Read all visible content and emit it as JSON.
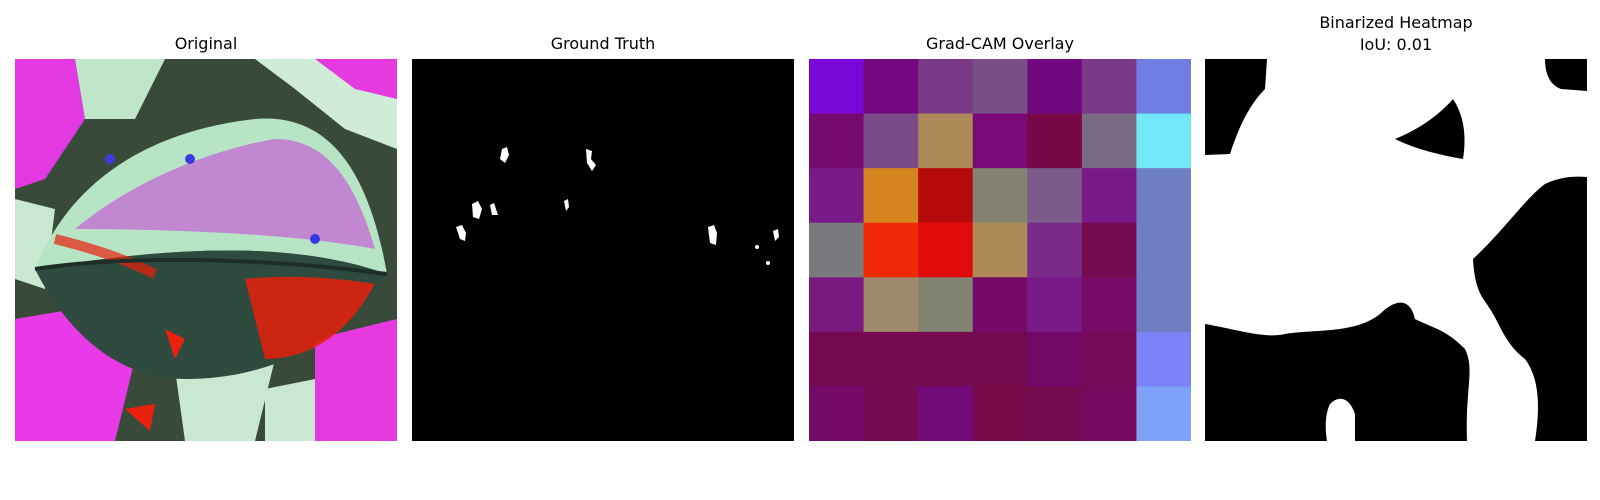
{
  "panels": [
    {
      "title": "Original"
    },
    {
      "title": "Ground Truth"
    },
    {
      "title": "Grad-CAM Overlay"
    },
    {
      "title": "Binarized Heatmap",
      "subtitle": "IoU: 0.01"
    }
  ],
  "gradcam_grid_colors": [
    [
      "#7a08d8",
      "#750a80",
      "#7b3a88",
      "#7a4f88",
      "#720880",
      "#7a3a88",
      "#6e7ee2"
    ],
    [
      "#760a6e",
      "#7a4a8a",
      "#ad8a58",
      "#7a0a78",
      "#760848",
      "#7a6a84",
      "#70e8f8"
    ],
    [
      "#7a1a88",
      "#d68420",
      "#b60a0a",
      "#848270",
      "#7a5a88",
      "#7a1a88",
      "#6e80c2"
    ],
    [
      "#7a7a7e",
      "#f22a08",
      "#e20a0a",
      "#ae8a58",
      "#7a2a88",
      "#760a50",
      "#6e80c2"
    ],
    [
      "#7a1a80",
      "#9e8a6a",
      "#828270",
      "#760a68",
      "#7a1a88",
      "#780a68",
      "#6e80c2"
    ],
    [
      "#760a50",
      "#760a50",
      "#760a50",
      "#760a50",
      "#720868",
      "#760a58",
      "#7a84f8"
    ],
    [
      "#760a68",
      "#760a50",
      "#720a7a",
      "#760a48",
      "#760a50",
      "#760a60",
      "#7ea2f8"
    ]
  ]
}
